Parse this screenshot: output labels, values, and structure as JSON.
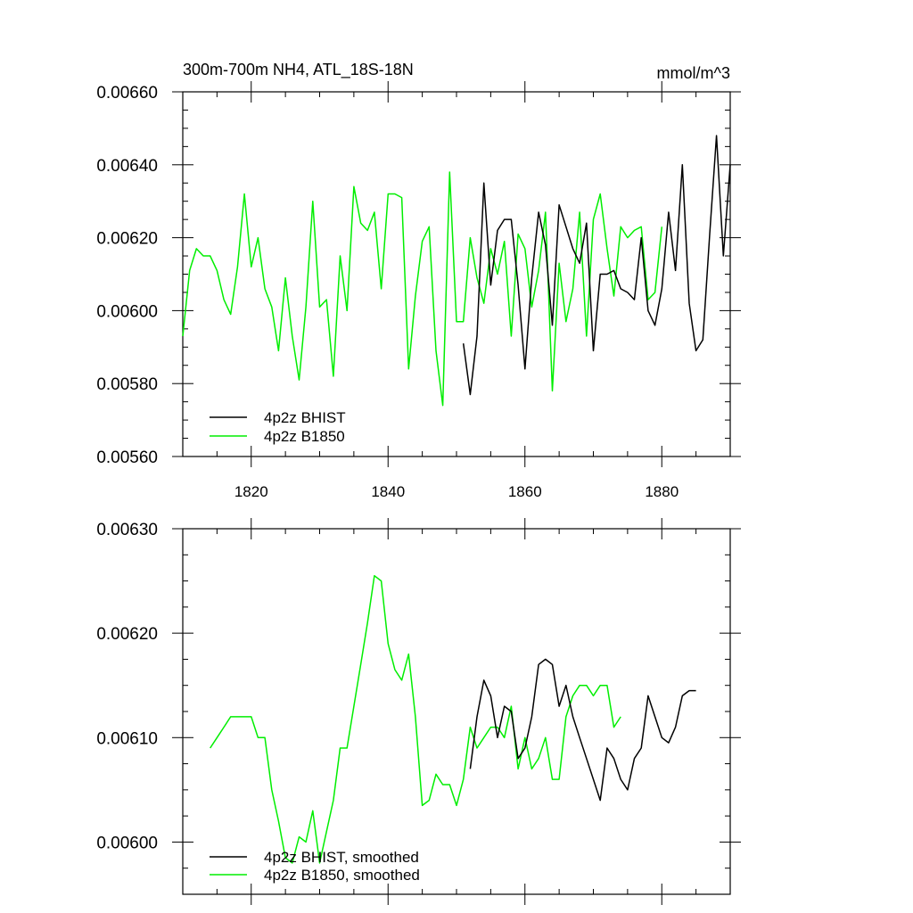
{
  "chart_data": [
    {
      "type": "line",
      "title": "300m-700m NH4, ATL_18S-18N",
      "units": "mmol/m^3",
      "xlabel": "",
      "ylabel": "",
      "xlim": [
        1810,
        1890
      ],
      "ylim": [
        0.0056,
        0.0066
      ],
      "yticks": [
        "0.00560",
        "0.00580",
        "0.00600",
        "0.00620",
        "0.00640",
        "0.00660"
      ],
      "xticks": [
        "1820",
        "1840",
        "1860",
        "1880"
      ],
      "grid": false,
      "legend_position": "bottom-left",
      "series": [
        {
          "name": "4p2z BHIST",
          "color": "#000000",
          "x_start": 1851,
          "values": [
            0.00591,
            0.00577,
            0.00593,
            0.00635,
            0.00607,
            0.00622,
            0.00625,
            0.00625,
            0.00607,
            0.00584,
            0.00609,
            0.00627,
            0.00618,
            0.00596,
            0.00629,
            0.00623,
            0.00617,
            0.00613,
            0.00624,
            0.00589,
            0.0061,
            0.0061,
            0.00611,
            0.00606,
            0.00605,
            0.00603,
            0.0062,
            0.006,
            0.00596,
            0.00606,
            0.00627,
            0.00611,
            0.0064,
            0.00602,
            0.00589,
            0.00592,
            0.00621,
            0.00648,
            0.00615,
            0.0064
          ]
        },
        {
          "name": "4p2z B1850",
          "color": "#00ee00",
          "x_start": 1810,
          "values": [
            0.00593,
            0.00611,
            0.00617,
            0.00615,
            0.00615,
            0.00611,
            0.00603,
            0.00599,
            0.00612,
            0.00632,
            0.00612,
            0.0062,
            0.00606,
            0.00601,
            0.00589,
            0.00609,
            0.00593,
            0.00581,
            0.00601,
            0.0063,
            0.00601,
            0.00603,
            0.00582,
            0.00615,
            0.006,
            0.00634,
            0.00624,
            0.00622,
            0.00627,
            0.00606,
            0.00632,
            0.00632,
            0.00631,
            0.00584,
            0.00604,
            0.00619,
            0.00623,
            0.00589,
            0.00574,
            0.00638,
            0.00597,
            0.00597,
            0.0062,
            0.00609,
            0.00602,
            0.00617,
            0.0061,
            0.00619,
            0.00593,
            0.00621,
            0.00617,
            0.00601,
            0.00611,
            0.00627,
            0.00578,
            0.00613,
            0.00597,
            0.00606,
            0.00627,
            0.00593,
            0.00625,
            0.00632,
            0.00617,
            0.00604,
            0.00623,
            0.0062,
            0.00622,
            0.00623,
            0.00603,
            0.00605,
            0.00623
          ]
        }
      ]
    },
    {
      "type": "line",
      "title": "",
      "xlabel": "",
      "ylabel": "",
      "xlim": [
        1810,
        1890
      ],
      "ylim": [
        0.00595,
        0.0063
      ],
      "yticks": [
        "0.00600",
        "0.00610",
        "0.00620",
        "0.00630"
      ],
      "grid": false,
      "legend_position": "bottom-left",
      "series": [
        {
          "name": "4p2z BHIST, smoothed",
          "color": "#000000",
          "x_start": 1852,
          "values": [
            0.00607,
            0.00612,
            0.006155,
            0.00614,
            0.0061,
            0.00613,
            0.006125,
            0.00608,
            0.00609,
            0.00612,
            0.00617,
            0.006175,
            0.00617,
            0.00613,
            0.00615,
            0.00612,
            0.0061,
            0.00608,
            0.00606,
            0.00604,
            0.00609,
            0.00608,
            0.00606,
            0.00605,
            0.00608,
            0.00609,
            0.00614,
            0.00612,
            0.0061,
            0.006095,
            0.00611,
            0.00614,
            0.006145,
            0.006145
          ]
        },
        {
          "name": "4p2z B1850, smoothed",
          "color": "#00ee00",
          "x_start": 1814,
          "values": [
            0.00609,
            0.0061,
            0.00611,
            0.00612,
            0.00612,
            0.00612,
            0.00612,
            0.0061,
            0.0061,
            0.00605,
            0.00602,
            0.005985,
            0.00598,
            0.006005,
            0.006,
            0.00603,
            0.00598,
            0.00601,
            0.00604,
            0.00609,
            0.00609,
            0.00613,
            0.00617,
            0.00621,
            0.006255,
            0.00625,
            0.00619,
            0.006165,
            0.006155,
            0.00618,
            0.00612,
            0.006035,
            0.00604,
            0.006065,
            0.006055,
            0.006055,
            0.006035,
            0.00606,
            0.00611,
            0.00609,
            0.0061,
            0.00611,
            0.00611,
            0.0061,
            0.00613,
            0.00607,
            0.0061,
            0.00607,
            0.00608,
            0.0061,
            0.00606,
            0.00606,
            0.00612,
            0.00614,
            0.00615,
            0.00615,
            0.00614,
            0.00615,
            0.00615,
            0.00611,
            0.00612
          ]
        }
      ]
    }
  ]
}
